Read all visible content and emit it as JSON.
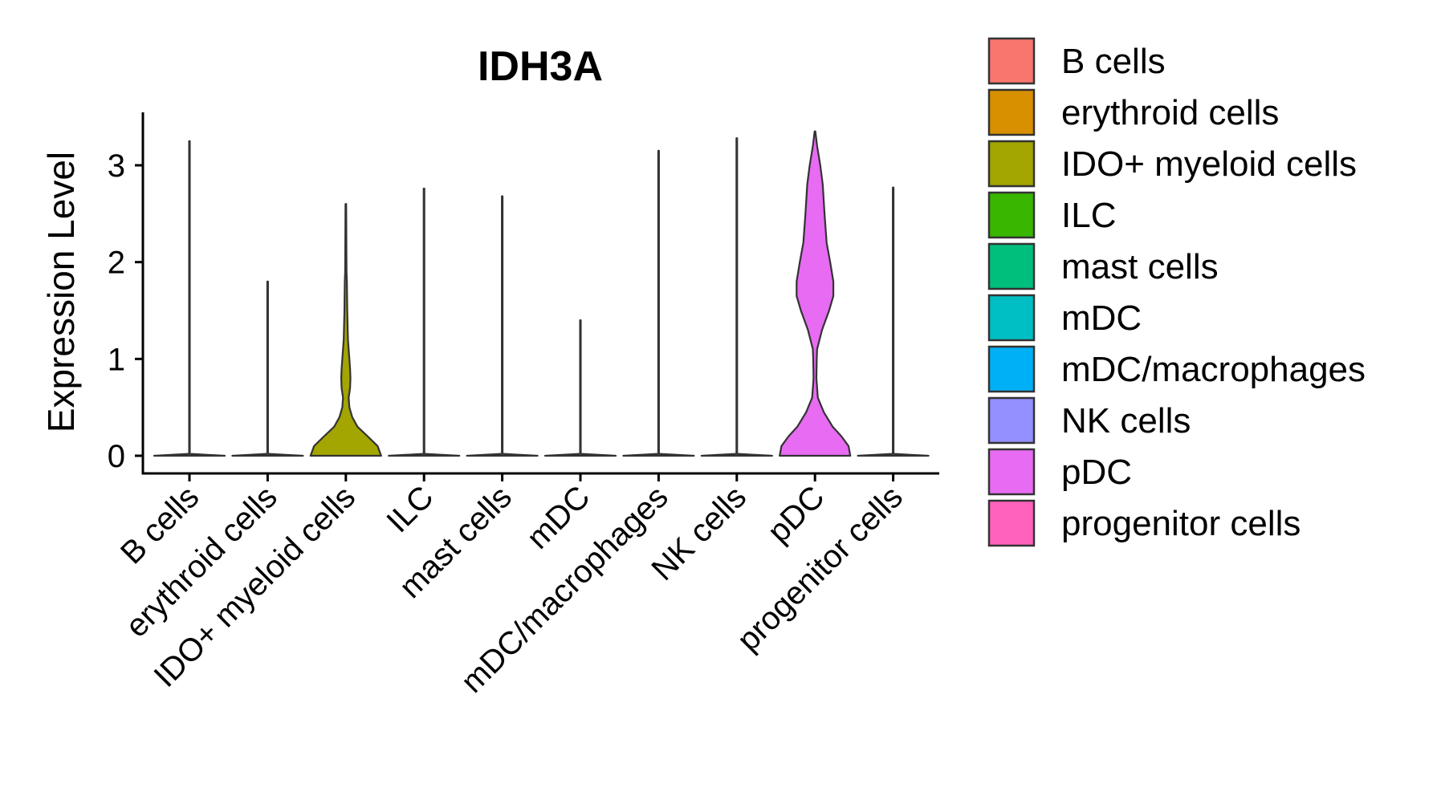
{
  "chart_data": {
    "type": "violin",
    "title": "IDH3A",
    "xlabel": "",
    "ylabel": "Expression Level",
    "ylim": [
      -0.17,
      3.55
    ],
    "yticks": [
      0,
      1,
      2,
      3
    ],
    "grid": false,
    "legend_position": "right",
    "categories": [
      "B cells",
      "erythroid cells",
      "IDO+ myeloid cells",
      "ILC",
      "mast cells",
      "mDC",
      "mDC/macrophages",
      "NK cells",
      "pDC",
      "progenitor cells"
    ],
    "colors": [
      "#F8766D",
      "#D89000",
      "#A3A500",
      "#39B600",
      "#00BF7D",
      "#00BFC4",
      "#00B0F6",
      "#9590FF",
      "#E76BF3",
      "#FF62BC"
    ],
    "max_values": [
      3.25,
      1.8,
      2.6,
      2.76,
      2.68,
      1.4,
      3.15,
      3.28,
      3.35,
      2.77
    ],
    "violins": [
      {
        "name": "B cells",
        "profile": [
          [
            0,
            1
          ],
          [
            0.02,
            0.01
          ],
          [
            3.25,
            0.01
          ]
        ]
      },
      {
        "name": "erythroid cells",
        "profile": [
          [
            0,
            1
          ],
          [
            0.02,
            0.01
          ],
          [
            1.8,
            0.01
          ]
        ]
      },
      {
        "name": "IDO+ myeloid cells",
        "profile": [
          [
            0,
            1
          ],
          [
            0.1,
            0.9
          ],
          [
            0.2,
            0.62
          ],
          [
            0.3,
            0.33
          ],
          [
            0.4,
            0.18
          ],
          [
            0.5,
            0.1
          ],
          [
            0.6,
            0.08
          ],
          [
            0.7,
            0.12
          ],
          [
            0.8,
            0.13
          ],
          [
            0.9,
            0.12
          ],
          [
            1.0,
            0.1
          ],
          [
            1.2,
            0.06
          ],
          [
            1.5,
            0.04
          ],
          [
            1.8,
            0.03
          ],
          [
            1.9,
            0.02
          ],
          [
            2.2,
            0.015
          ],
          [
            2.6,
            0.01
          ]
        ]
      },
      {
        "name": "ILC",
        "profile": [
          [
            0,
            1
          ],
          [
            0.02,
            0.01
          ],
          [
            2.76,
            0.01
          ]
        ]
      },
      {
        "name": "mast cells",
        "profile": [
          [
            0,
            1
          ],
          [
            0.02,
            0.01
          ],
          [
            2.68,
            0.01
          ]
        ]
      },
      {
        "name": "mDC",
        "profile": [
          [
            0,
            1
          ],
          [
            0.02,
            0.01
          ],
          [
            1.4,
            0.01
          ]
        ]
      },
      {
        "name": "mDC/macrophages",
        "profile": [
          [
            0,
            1
          ],
          [
            0.02,
            0.01
          ],
          [
            3.15,
            0.01
          ]
        ]
      },
      {
        "name": "NK cells",
        "profile": [
          [
            0,
            1
          ],
          [
            0.02,
            0.01
          ],
          [
            3.28,
            0.01
          ]
        ]
      },
      {
        "name": "pDC",
        "profile": [
          [
            0,
            1
          ],
          [
            0.1,
            0.95
          ],
          [
            0.2,
            0.75
          ],
          [
            0.3,
            0.5
          ],
          [
            0.45,
            0.25
          ],
          [
            0.6,
            0.08
          ],
          [
            0.8,
            0.04
          ],
          [
            1.0,
            0.05
          ],
          [
            1.1,
            0.06
          ],
          [
            1.3,
            0.2
          ],
          [
            1.5,
            0.4
          ],
          [
            1.65,
            0.52
          ],
          [
            1.8,
            0.52
          ],
          [
            2.0,
            0.43
          ],
          [
            2.2,
            0.33
          ],
          [
            2.5,
            0.27
          ],
          [
            2.8,
            0.22
          ],
          [
            3.0,
            0.15
          ],
          [
            3.2,
            0.06
          ],
          [
            3.35,
            0.01
          ]
        ]
      },
      {
        "name": "progenitor cells",
        "profile": [
          [
            0,
            1
          ],
          [
            0.02,
            0.01
          ],
          [
            2.77,
            0.01
          ]
        ]
      }
    ]
  }
}
